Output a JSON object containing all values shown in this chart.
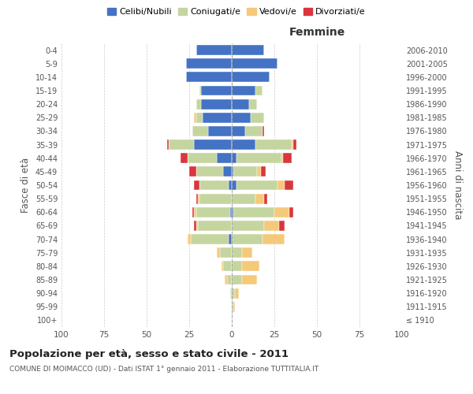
{
  "age_groups": [
    "100+",
    "95-99",
    "90-94",
    "85-89",
    "80-84",
    "75-79",
    "70-74",
    "65-69",
    "60-64",
    "55-59",
    "50-54",
    "45-49",
    "40-44",
    "35-39",
    "30-34",
    "25-29",
    "20-24",
    "15-19",
    "10-14",
    "5-9",
    "0-4"
  ],
  "birth_years": [
    "≤ 1910",
    "1911-1915",
    "1916-1920",
    "1921-1925",
    "1926-1930",
    "1931-1935",
    "1936-1940",
    "1941-1945",
    "1946-1950",
    "1951-1955",
    "1956-1960",
    "1961-1965",
    "1966-1970",
    "1971-1975",
    "1976-1980",
    "1981-1985",
    "1986-1990",
    "1991-1995",
    "1996-2000",
    "2001-2005",
    "2006-2010"
  ],
  "male": {
    "celibe": [
      0,
      0,
      0,
      0,
      0,
      0,
      2,
      0,
      1,
      0,
      2,
      5,
      9,
      22,
      14,
      17,
      18,
      18,
      27,
      27,
      21
    ],
    "coniugato": [
      0,
      0,
      1,
      3,
      5,
      7,
      22,
      20,
      20,
      19,
      17,
      16,
      17,
      15,
      9,
      4,
      3,
      1,
      0,
      0,
      0
    ],
    "vedovo": [
      0,
      0,
      0,
      1,
      1,
      2,
      2,
      1,
      1,
      1,
      0,
      0,
      0,
      0,
      0,
      1,
      0,
      0,
      0,
      0,
      0
    ],
    "divorziato": [
      0,
      0,
      0,
      0,
      0,
      0,
      0,
      1,
      1,
      1,
      3,
      4,
      4,
      1,
      0,
      0,
      0,
      0,
      0,
      0,
      0
    ]
  },
  "female": {
    "nubile": [
      0,
      0,
      0,
      0,
      0,
      0,
      0,
      0,
      1,
      0,
      3,
      1,
      3,
      14,
      8,
      11,
      10,
      14,
      22,
      27,
      19
    ],
    "coniugata": [
      0,
      1,
      2,
      6,
      6,
      6,
      18,
      19,
      24,
      14,
      24,
      14,
      26,
      21,
      10,
      8,
      5,
      4,
      0,
      0,
      0
    ],
    "vedova": [
      0,
      1,
      2,
      9,
      10,
      6,
      13,
      9,
      9,
      5,
      4,
      2,
      1,
      1,
      0,
      0,
      0,
      0,
      0,
      0,
      0
    ],
    "divorziata": [
      0,
      0,
      0,
      0,
      0,
      0,
      0,
      3,
      2,
      2,
      5,
      3,
      5,
      2,
      1,
      0,
      0,
      0,
      0,
      0,
      0
    ]
  },
  "colors": {
    "celibe": "#4472c4",
    "coniugato": "#c5d5a0",
    "vedovo": "#f5c97a",
    "divorziato": "#d9363e"
  },
  "xlim": 100,
  "title": "Popolazione per età, sesso e stato civile - 2011",
  "subtitle": "COMUNE DI MOIMACCO (UD) - Dati ISTAT 1° gennaio 2011 - Elaborazione TUTTITALIA.IT",
  "ylabel_left": "Fasce di età",
  "ylabel_right": "Anni di nascita",
  "legend_labels": [
    "Celibi/Nubili",
    "Coniugati/e",
    "Vedovi/e",
    "Divorziati/e"
  ],
  "background_color": "#ffffff",
  "grid_color": "#cccccc"
}
